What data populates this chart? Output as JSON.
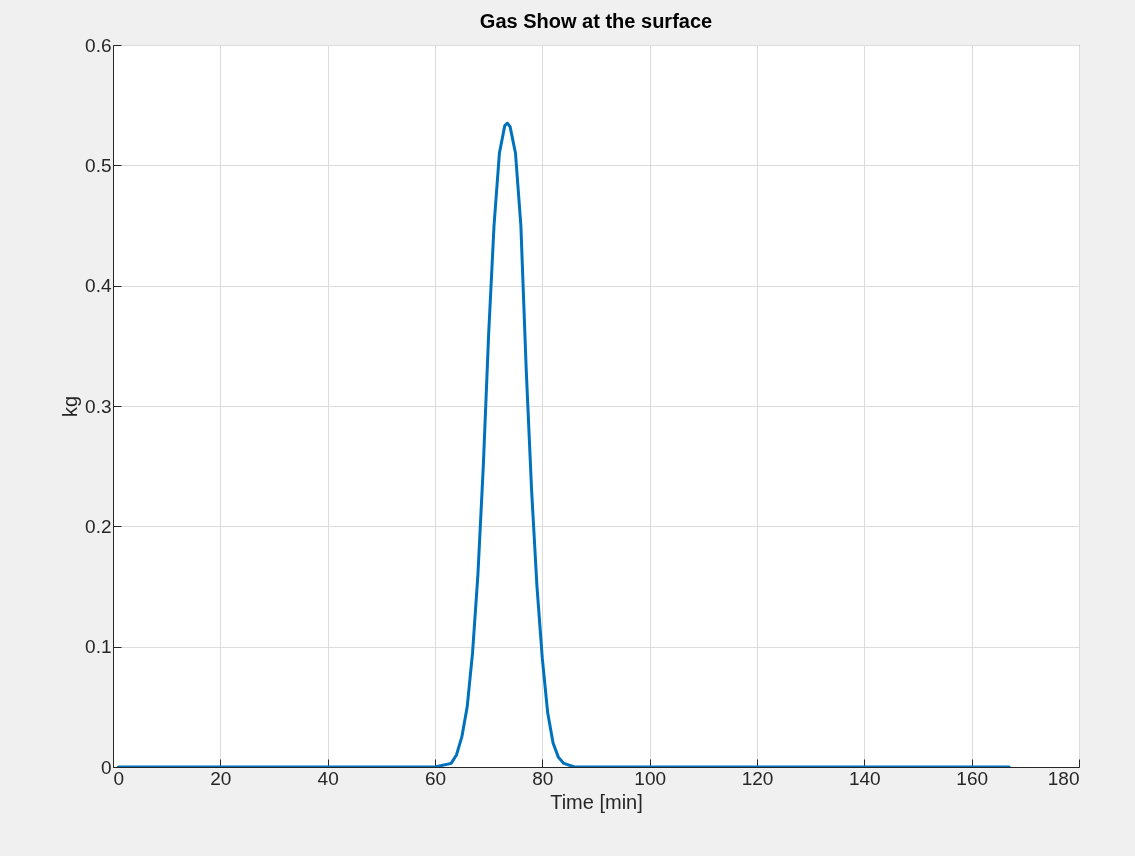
{
  "chart_data": {
    "type": "line",
    "title": "Gas Show at the surface",
    "xlabel": "Time [min]",
    "ylabel": "kg",
    "x": [
      1,
      60,
      63,
      64,
      65,
      66,
      67,
      68,
      69,
      70,
      71,
      72,
      73,
      73.5,
      74,
      75,
      76,
      77,
      78,
      79,
      80,
      81,
      82,
      83,
      84,
      86,
      167
    ],
    "series": [
      {
        "color": "#0072bd",
        "values": [
          0,
          0,
          0.003,
          0.01,
          0.025,
          0.05,
          0.095,
          0.16,
          0.25,
          0.36,
          0.45,
          0.51,
          0.533,
          0.535,
          0.532,
          0.51,
          0.45,
          0.33,
          0.23,
          0.15,
          0.09,
          0.045,
          0.02,
          0.008,
          0.003,
          0,
          0
        ]
      }
    ],
    "xlim": [
      0,
      180
    ],
    "xticks": [
      0,
      20,
      40,
      60,
      80,
      100,
      120,
      140,
      160,
      180
    ],
    "ylim": [
      0,
      0.6
    ],
    "yticks": [
      0,
      0.1,
      0.2,
      0.3,
      0.4,
      0.5,
      0.6
    ],
    "grid": true,
    "marker": "none",
    "line_style": "solid"
  }
}
